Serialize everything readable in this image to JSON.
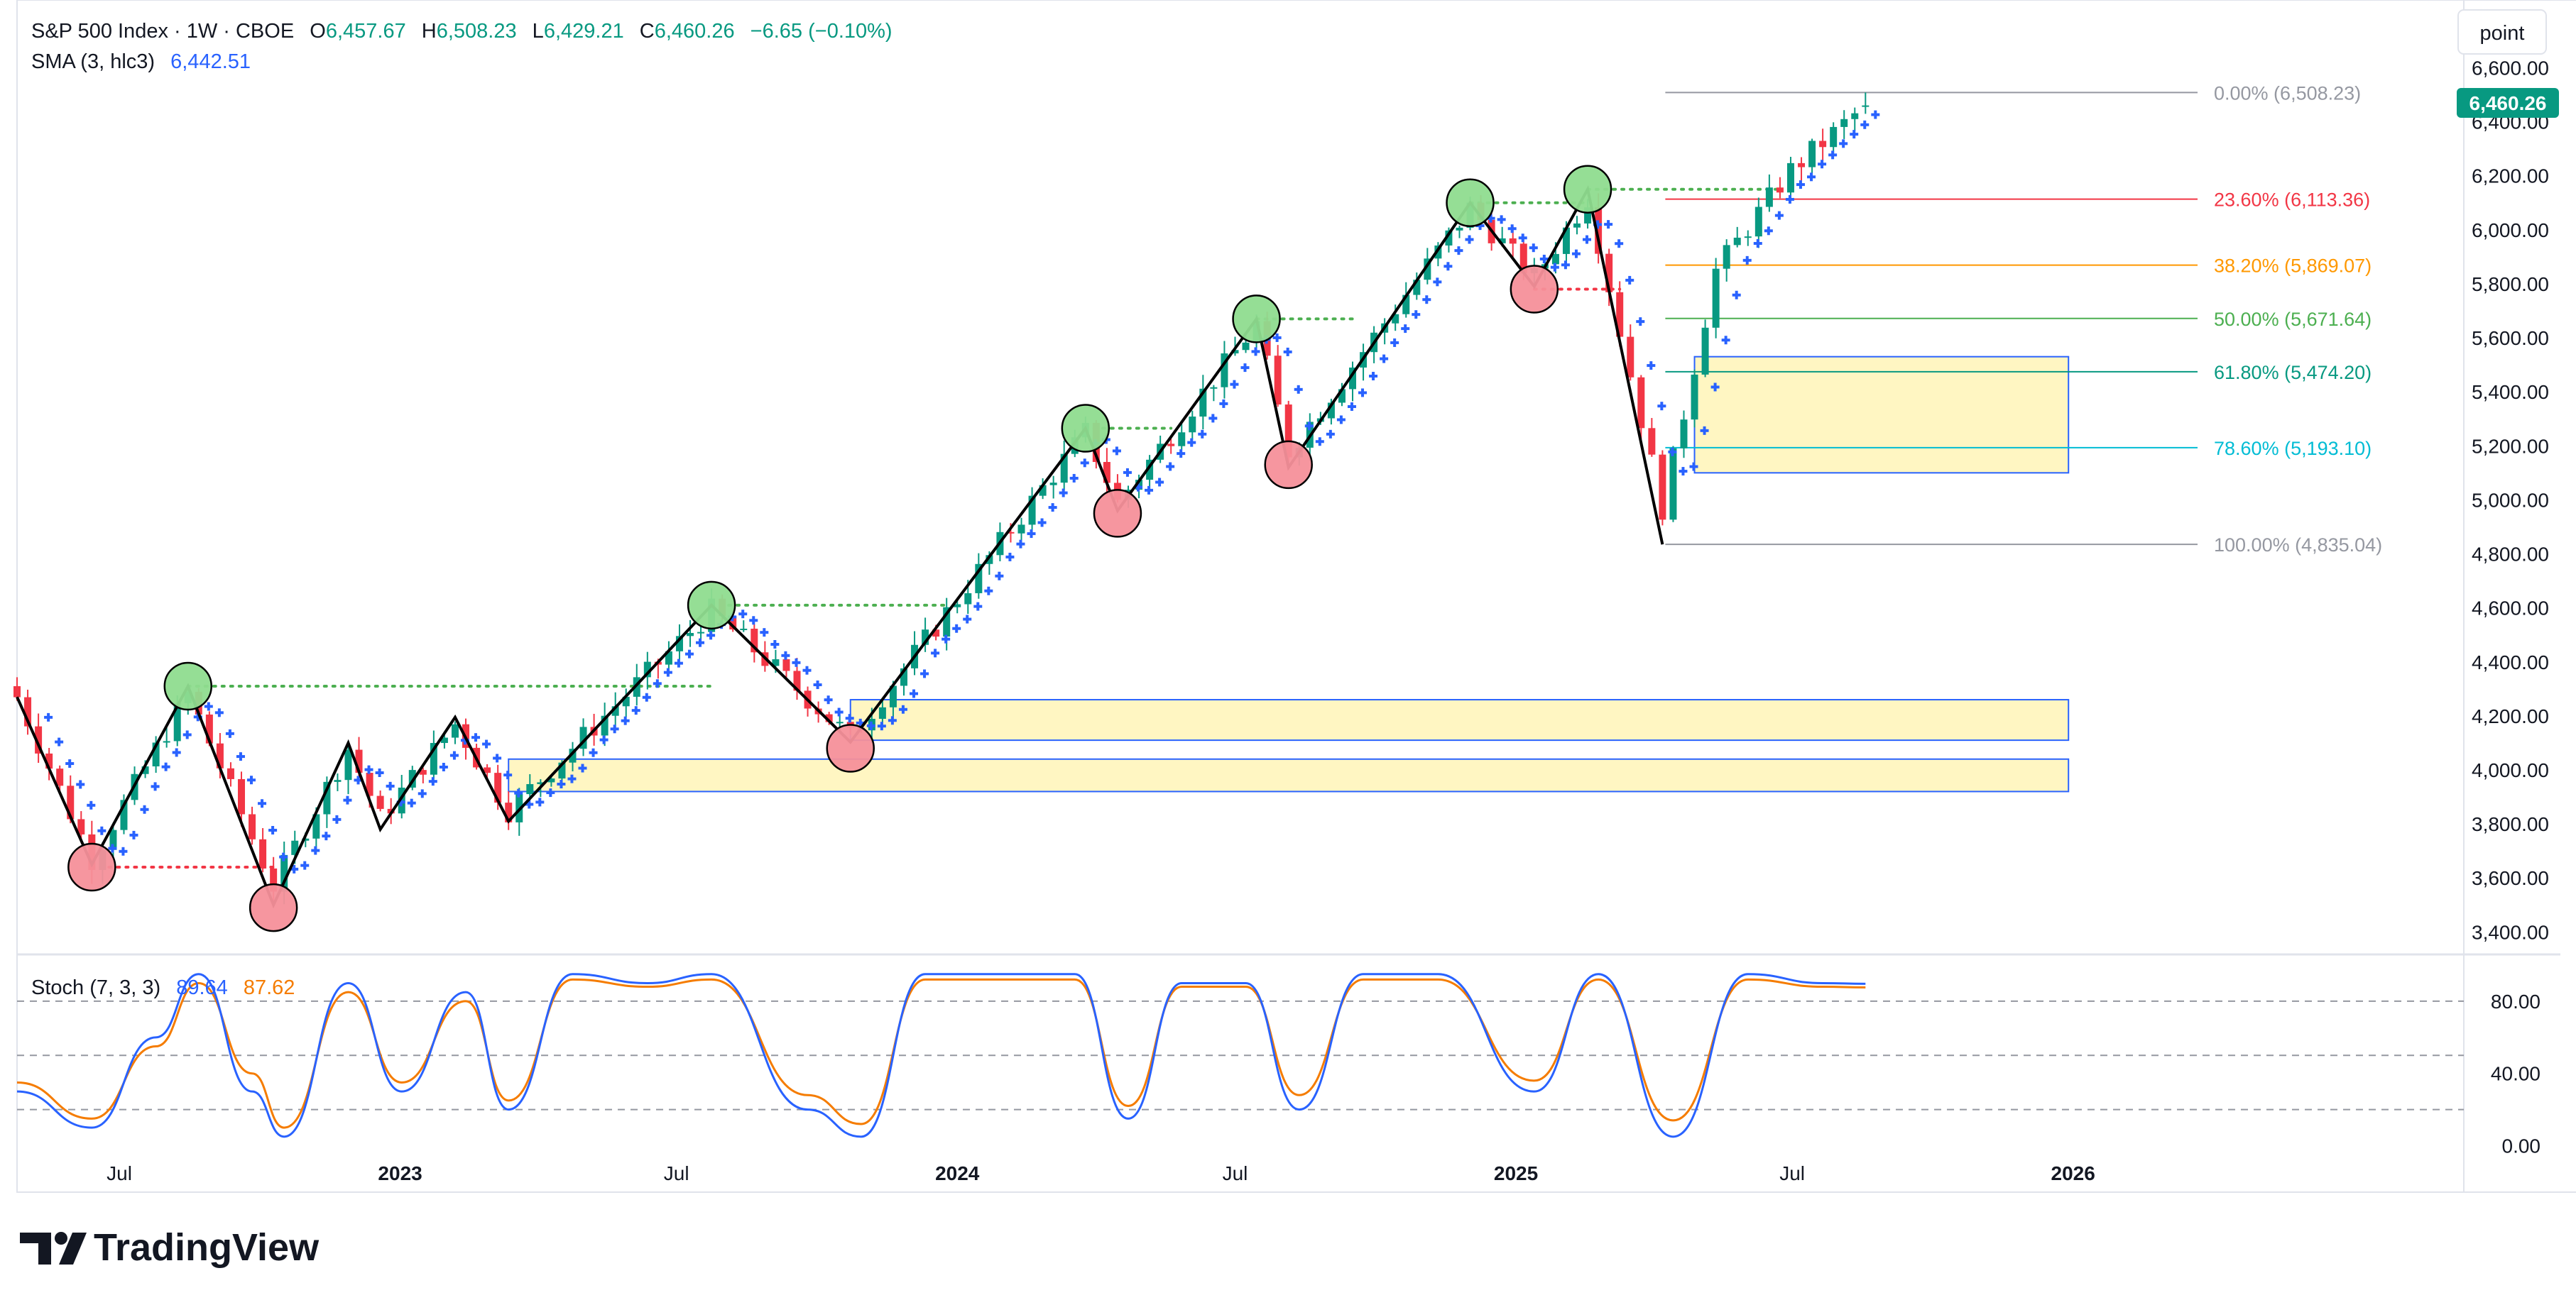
{
  "header": {
    "symbol_line": "S&P 500 Index · 1W · CBOE",
    "o_label": "O",
    "o_value": "6,457.67",
    "h_label": "H",
    "h_value": "6,508.23",
    "l_label": "L",
    "l_value": "6,429.21",
    "c_label": "C",
    "c_value": "6,460.26",
    "change": "−6.65 (−0.10%)",
    "sma_label": "SMA (3, hlc3)",
    "sma_value": "6,442.51"
  },
  "stoch": {
    "label": "Stoch (7, 3, 3)",
    "k_value": "89.64",
    "d_value": "87.62"
  },
  "scale_button": "point",
  "last_price": "6,460.26",
  "brand": "TradingView",
  "colors": {
    "up": "#089981",
    "down": "#f23645",
    "sma_cross": "#2962ff",
    "stoch_k": "#2962ff",
    "stoch_d": "#f57c00",
    "swing_high": "#8fdc8f",
    "swing_low": "#f5909a",
    "zone_fill": "#fff6c2",
    "zone_border": "#2962ff"
  },
  "chart_data": [
    {
      "type": "candlestick",
      "timeframe": "1W",
      "x_ticks": [
        "Jul",
        "2023",
        "Jul",
        "2024",
        "Jul",
        "2025",
        "Jul",
        "2026"
      ],
      "y_ticks": [
        "3,400.00",
        "3,600.00",
        "3,800.00",
        "4,000.00",
        "4,200.00",
        "4,400.00",
        "4,600.00",
        "4,800.00",
        "5,000.00",
        "5,200.00",
        "5,400.00",
        "5,600.00",
        "5,800.00",
        "6,000.00",
        "6,200.00",
        "6,400.00",
        "6,600.00"
      ],
      "y_tick_values": [
        3400,
        3600,
        3800,
        4000,
        4200,
        4400,
        4600,
        4800,
        5000,
        5200,
        5400,
        5600,
        5800,
        6000,
        6200,
        6400,
        6600
      ],
      "ylim": [
        3330,
        6630
      ],
      "x_range": [
        "2022-04-25",
        "2026-09-14"
      ],
      "price_anchors": [
        [
          "2022-04-25",
          4270
        ],
        [
          "2022-06-13",
          3670
        ],
        [
          "2022-08-15",
          4280
        ],
        [
          "2022-10-10",
          3570
        ],
        [
          "2022-11-28",
          4080
        ],
        [
          "2022-12-19",
          3820
        ],
        [
          "2023-02-06",
          4170
        ],
        [
          "2023-03-13",
          3850
        ],
        [
          "2023-07-24",
          4590
        ],
        [
          "2023-10-23",
          4120
        ],
        [
          "2024-03-25",
          5250
        ],
        [
          "2024-04-15",
          4990
        ],
        [
          "2024-07-15",
          5650
        ],
        [
          "2024-08-05",
          5180
        ],
        [
          "2024-12-02",
          6080
        ],
        [
          "2025-01-13",
          5820
        ],
        [
          "2025-02-17",
          6120
        ],
        [
          "2025-04-07",
          4970
        ],
        [
          "2025-05-12",
          5850
        ],
        [
          "2025-06-30",
          6220
        ],
        [
          "2025-08-18",
          6460
        ]
      ],
      "last_candle": {
        "open": 6457.67,
        "high": 6508.23,
        "low": 6429.21,
        "close": 6460.26
      },
      "fib_levels": [
        {
          "label": "0.00% (6,508.23)",
          "value": 6508.23,
          "color": "#9598a1"
        },
        {
          "label": "23.60% (6,113.36)",
          "value": 6113.36,
          "color": "#f23645"
        },
        {
          "label": "38.20% (5,869.07)",
          "value": 5869.07,
          "color": "#ff9800"
        },
        {
          "label": "50.00% (5,671.64)",
          "value": 5671.64,
          "color": "#4caf50"
        },
        {
          "label": "61.80% (5,474.20)",
          "value": 5474.2,
          "color": "#089981"
        },
        {
          "label": "78.60% (5,193.10)",
          "value": 5193.1,
          "color": "#00bcd4"
        },
        {
          "label": "100.00% (4,835.04)",
          "value": 4835.04,
          "color": "#9598a1"
        }
      ],
      "fib_x_range": [
        "2025-04-07",
        "2025-08-18"
      ],
      "zones": [
        {
          "x0": "2023-10-23",
          "x1": "2025-12-29",
          "y0": 4110,
          "y1": 4260
        },
        {
          "x0": "2023-03-13",
          "x1": "2025-12-29",
          "y0": 3920,
          "y1": 4040
        },
        {
          "x0": "2025-04-28",
          "x1": "2025-12-29",
          "y0": 5100,
          "y1": 5530
        }
      ],
      "zigzag": [
        [
          "2022-04-25",
          4270
        ],
        [
          "2022-06-13",
          3650
        ],
        [
          "2022-08-15",
          4310
        ],
        [
          "2022-10-10",
          3500
        ],
        [
          "2022-11-28",
          4100
        ],
        [
          "2022-12-19",
          3780
        ],
        [
          "2023-02-06",
          4195
        ],
        [
          "2023-03-13",
          3810
        ],
        [
          "2023-07-24",
          4610
        ],
        [
          "2023-10-23",
          4103
        ],
        [
          "2024-03-25",
          5265
        ],
        [
          "2024-04-15",
          4960
        ],
        [
          "2024-07-15",
          5670
        ],
        [
          "2024-08-05",
          5120
        ],
        [
          "2024-12-02",
          6100
        ],
        [
          "2025-01-13",
          5790
        ],
        [
          "2025-02-17",
          6150
        ],
        [
          "2025-04-07",
          4835
        ]
      ],
      "swing_highs": [
        {
          "date": "2022-08-15",
          "value": 4310
        },
        {
          "date": "2023-07-24",
          "value": 4610
        },
        {
          "date": "2024-03-25",
          "value": 5265
        },
        {
          "date": "2024-07-15",
          "value": 5670
        },
        {
          "date": "2024-12-02",
          "value": 6100
        },
        {
          "date": "2025-02-17",
          "value": 6150
        }
      ],
      "swing_lows": [
        {
          "date": "2022-06-13",
          "value": 3640
        },
        {
          "date": "2022-10-10",
          "value": 3490
        },
        {
          "date": "2023-10-23",
          "value": 4080
        },
        {
          "date": "2024-04-15",
          "value": 4950
        },
        {
          "date": "2024-08-05",
          "value": 5130
        },
        {
          "date": "2025-01-13",
          "value": 5780
        }
      ],
      "dotted_levels": [
        {
          "color": "#4caf50",
          "value": 4310,
          "x0": "2022-08-15",
          "x1": "2023-07-24"
        },
        {
          "color": "#4caf50",
          "value": 4610,
          "x0": "2023-07-24",
          "x1": "2023-12-25"
        },
        {
          "color": "#4caf50",
          "value": 5265,
          "x0": "2024-03-25",
          "x1": "2024-05-20"
        },
        {
          "color": "#4caf50",
          "value": 5670,
          "x0": "2024-07-15",
          "x1": "2024-09-16"
        },
        {
          "color": "#4caf50",
          "value": 6100,
          "x0": "2024-12-02",
          "x1": "2025-02-17"
        },
        {
          "color": "#4caf50",
          "value": 6150,
          "x0": "2025-02-17",
          "x1": "2025-06-23"
        },
        {
          "color": "#f23645",
          "value": 3640,
          "x0": "2022-06-13",
          "x1": "2022-10-10"
        },
        {
          "color": "#f23645",
          "value": 5780,
          "x0": "2025-01-13",
          "x1": "2025-03-10"
        }
      ]
    },
    {
      "type": "line",
      "name": "Stoch (7, 3, 3)",
      "y_ticks": [
        "0.00",
        "40.00",
        "80.00"
      ],
      "y_tick_values": [
        0,
        40,
        80
      ],
      "ylim": [
        -10,
        100
      ],
      "reference_lines": [
        20,
        50,
        80
      ],
      "series": [
        {
          "values": [
            30,
            10,
            60,
            95,
            30,
            5,
            90,
            30,
            85,
            20,
            95,
            90,
            95,
            20,
            5,
            95,
            95,
            95,
            15,
            90,
            90,
            20,
            95,
            95,
            30,
            95,
            5,
            95,
            90,
            89.64
          ]
        },
        {
          "values": [
            35,
            15,
            55,
            90,
            40,
            10,
            85,
            35,
            80,
            25,
            92,
            88,
            92,
            28,
            12,
            92,
            92,
            92,
            22,
            88,
            88,
            28,
            92,
            92,
            36,
            92,
            14,
            92,
            88,
            87.62
          ]
        }
      ],
      "series_dates": [
        "2022-04-25",
        "2022-06-13",
        "2022-07-25",
        "2022-08-22",
        "2022-09-26",
        "2022-10-17",
        "2022-11-28",
        "2023-01-02",
        "2023-02-13",
        "2023-03-13",
        "2023-04-24",
        "2023-06-12",
        "2023-07-24",
        "2023-09-25",
        "2023-10-30",
        "2023-12-11",
        "2024-02-05",
        "2024-03-18",
        "2024-04-22",
        "2024-05-27",
        "2024-07-08",
        "2024-08-12",
        "2024-09-23",
        "2024-11-11",
        "2025-01-13",
        "2025-02-24",
        "2025-04-14",
        "2025-06-02",
        "2025-07-21",
        "2025-08-18"
      ]
    }
  ]
}
